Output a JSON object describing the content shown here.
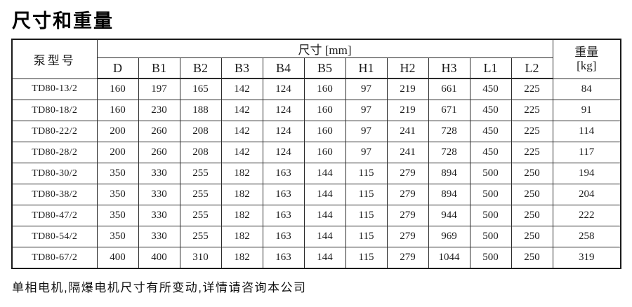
{
  "page": {
    "title": "尺寸和重量",
    "footnote": "单相电机,隔爆电机尺寸有所变动,详情请咨询本公司"
  },
  "table": {
    "model_header": "泵型号",
    "dims_group_header": "尺寸 [mm]",
    "weight_header_line1": "重量",
    "weight_header_line2": "[kg]",
    "dim_columns": [
      "D",
      "B1",
      "B2",
      "B3",
      "B4",
      "B5",
      "H1",
      "H2",
      "H3",
      "L1",
      "L2"
    ],
    "rows": [
      {
        "model": "TD80-13/2",
        "values": [
          160,
          197,
          165,
          142,
          124,
          160,
          97,
          219,
          661,
          450,
          225
        ],
        "weight": 84
      },
      {
        "model": "TD80-18/2",
        "values": [
          160,
          230,
          188,
          142,
          124,
          160,
          97,
          219,
          671,
          450,
          225
        ],
        "weight": 91
      },
      {
        "model": "TD80-22/2",
        "values": [
          200,
          260,
          208,
          142,
          124,
          160,
          97,
          241,
          728,
          450,
          225
        ],
        "weight": 114
      },
      {
        "model": "TD80-28/2",
        "values": [
          200,
          260,
          208,
          142,
          124,
          160,
          97,
          241,
          728,
          450,
          225
        ],
        "weight": 117
      },
      {
        "model": "TD80-30/2",
        "values": [
          350,
          330,
          255,
          182,
          163,
          144,
          115,
          279,
          894,
          500,
          250
        ],
        "weight": 194
      },
      {
        "model": "TD80-38/2",
        "values": [
          350,
          330,
          255,
          182,
          163,
          144,
          115,
          279,
          894,
          500,
          250
        ],
        "weight": 204
      },
      {
        "model": "TD80-47/2",
        "values": [
          350,
          330,
          255,
          182,
          163,
          144,
          115,
          279,
          944,
          500,
          250
        ],
        "weight": 222
      },
      {
        "model": "TD80-54/2",
        "values": [
          350,
          330,
          255,
          182,
          163,
          144,
          115,
          279,
          969,
          500,
          250
        ],
        "weight": 258
      },
      {
        "model": "TD80-67/2",
        "values": [
          400,
          400,
          310,
          182,
          163,
          144,
          115,
          279,
          1044,
          500,
          250
        ],
        "weight": 319
      }
    ]
  }
}
